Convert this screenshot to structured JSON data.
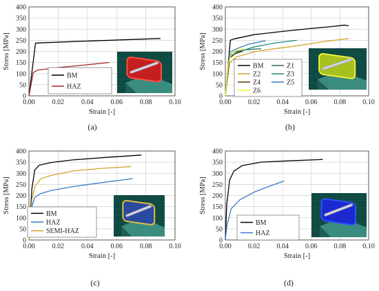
{
  "chart_data": [
    {
      "type": "line",
      "panel_label": "(a)",
      "xlabel": "Strain [-]",
      "ylabel": "Stress [MPa]",
      "xlim": [
        0,
        0.1
      ],
      "ylim": [
        0,
        400
      ],
      "xticks": [
        "0.00",
        "0.02",
        "0.04",
        "0.06",
        "0.08",
        "0.10"
      ],
      "yticks": [
        "0",
        "50",
        "100",
        "150",
        "200",
        "250",
        "300",
        "350",
        "400"
      ],
      "grid": true,
      "legend_position": "bottom-left",
      "legend_columns": 1,
      "inset_image": "fe-model-red-haz",
      "series": [
        {
          "name": "BM",
          "color": "#000000",
          "x": [
            0,
            0.0045,
            0.01,
            0.03,
            0.06,
            0.09
          ],
          "y": [
            0,
            237,
            239,
            244,
            251,
            258
          ]
        },
        {
          "name": "HAZ",
          "color": "#a52a2a",
          "x": [
            0,
            0.003,
            0.006,
            0.02,
            0.04,
            0.055
          ],
          "y": [
            0,
            105,
            116,
            127,
            140,
            150
          ]
        }
      ]
    },
    {
      "type": "line",
      "panel_label": "(b)",
      "xlabel": "Strain [-]",
      "ylabel": "Stress [MPa]",
      "xlim": [
        0,
        0.1
      ],
      "ylim": [
        0,
        400
      ],
      "xticks": [
        "0.00",
        "0.02",
        "0.04",
        "0.06",
        "0.08",
        "0.10"
      ],
      "yticks": [
        "0",
        "50",
        "100",
        "150",
        "200",
        "250",
        "300",
        "350",
        "400"
      ],
      "grid": true,
      "legend_position": "bottom-left",
      "legend_columns": 2,
      "inset_image": "fe-model-zones",
      "series": [
        {
          "name": "BM",
          "color": "#000000",
          "x": [
            0,
            0.0035,
            0.006,
            0.02,
            0.04,
            0.06,
            0.075,
            0.083,
            0.086
          ],
          "y": [
            0,
            250,
            256,
            275,
            290,
            303,
            312,
            318,
            315
          ]
        },
        {
          "name": "Z1",
          "color": "#2a6a5a",
          "x": [
            0,
            0.003,
            0.008,
            0.015,
            0.025
          ],
          "y": [
            0,
            185,
            200,
            208,
            212
          ]
        },
        {
          "name": "Z2",
          "color": "#d4a42a",
          "x": [
            0,
            0.003,
            0.008,
            0.02,
            0.03,
            0.05,
            0.07,
            0.086
          ],
          "y": [
            0,
            150,
            175,
            198,
            208,
            225,
            245,
            258
          ]
        },
        {
          "name": "Z3",
          "color": "#1a8a7a",
          "x": [
            0,
            0.003,
            0.008,
            0.02,
            0.035,
            0.05
          ],
          "y": [
            0,
            175,
            195,
            220,
            238,
            250
          ]
        },
        {
          "name": "Z4",
          "color": "#5a3a10",
          "x": [
            0,
            0.003,
            0.007,
            0.012
          ],
          "y": [
            0,
            170,
            190,
            200
          ]
        },
        {
          "name": "Z5",
          "color": "#3a7ab8",
          "x": [
            0,
            0.003,
            0.008,
            0.016,
            0.028
          ],
          "y": [
            0,
            195,
            212,
            232,
            248
          ]
        },
        {
          "name": "Z6",
          "color": "#f0f028",
          "x": [
            0,
            0.002,
            0.004,
            0.008,
            0.013
          ],
          "y": [
            0,
            140,
            185,
            205,
            212
          ]
        }
      ]
    },
    {
      "type": "line",
      "panel_label": "(c)",
      "xlabel": "Strain [-]",
      "ylabel": "Stress [MPa]",
      "xlim": [
        0,
        0.1
      ],
      "ylim": [
        0,
        400
      ],
      "xticks": [
        "0.00",
        "0.02",
        "0.04",
        "0.06",
        "0.08",
        "0.10"
      ],
      "yticks": [
        "0",
        "50",
        "100",
        "150",
        "200",
        "250",
        "300",
        "350",
        "400"
      ],
      "grid": true,
      "legend_position": "bottom-left",
      "legend_columns": 1,
      "inset_image": "fe-model-semi-haz",
      "series": [
        {
          "name": "BM",
          "color": "#000000",
          "x": [
            0,
            0.002,
            0.004,
            0.007,
            0.015,
            0.03,
            0.05,
            0.077
          ],
          "y": [
            0,
            230,
            315,
            336,
            348,
            360,
            370,
            382
          ]
        },
        {
          "name": "HAZ",
          "color": "#3a7bc8",
          "x": [
            0,
            0.002,
            0.004,
            0.008,
            0.015,
            0.03,
            0.05,
            0.071
          ],
          "y": [
            0,
            150,
            192,
            208,
            222,
            240,
            258,
            276
          ]
        },
        {
          "name": "SEMI-HAZ",
          "color": "#d4a42a",
          "x": [
            0,
            0.002,
            0.004,
            0.008,
            0.015,
            0.03,
            0.05,
            0.07
          ],
          "y": [
            0,
            180,
            240,
            275,
            290,
            310,
            322,
            330
          ]
        }
      ]
    },
    {
      "type": "line",
      "panel_label": "(d)",
      "xlabel": "Strain [-]",
      "ylabel": "Stress [MPa]",
      "xlim": [
        0,
        0.1
      ],
      "ylim": [
        0,
        400
      ],
      "xticks": [
        "0.00",
        "0.02",
        "0.04",
        "0.06",
        "0.08",
        "0.10"
      ],
      "yticks": [
        "0",
        "50",
        "100",
        "150",
        "200",
        "250",
        "300",
        "350",
        "400"
      ],
      "grid": true,
      "legend_position": "bottom-left",
      "legend_columns": 1,
      "inset_image": "fe-model-blue-haz",
      "series": [
        {
          "name": "BM",
          "color": "#000000",
          "x": [
            0,
            0.001,
            0.003,
            0.006,
            0.012,
            0.025,
            0.045,
            0.068
          ],
          "y": [
            0,
            160,
            270,
            310,
            335,
            350,
            356,
            362
          ]
        },
        {
          "name": "HAZ",
          "color": "#3a7bc8",
          "x": [
            0,
            0.001,
            0.004,
            0.01,
            0.02,
            0.03,
            0.041
          ],
          "y": [
            0,
            60,
            140,
            180,
            215,
            240,
            265
          ]
        }
      ]
    }
  ],
  "colors": {
    "grid": "#d0d0d0",
    "axis": "#333333",
    "inset_bg": "#0f4a43",
    "inset_beam": "#3a8c7e",
    "inset_beam_dark": "#1f5f54"
  }
}
